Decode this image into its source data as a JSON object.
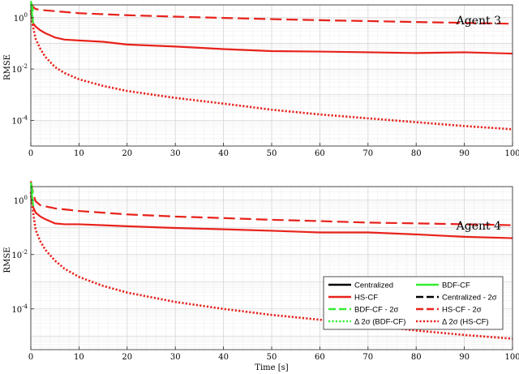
{
  "chart_data": [
    {
      "type": "line",
      "annotation": "Agent 3",
      "xlabel": "",
      "ylabel": "RMSE",
      "xlim": [
        0,
        100
      ],
      "ylim_log10": [
        -5,
        0.5
      ],
      "yscale": "log",
      "grid": true,
      "xticks": [
        "0",
        "10",
        "20",
        "30",
        "40",
        "50",
        "60",
        "70",
        "80",
        "90",
        "100"
      ],
      "yticks": [
        {
          "base": "10",
          "exp": "0"
        },
        {
          "base": "10",
          "exp": "-2"
        },
        {
          "base": "10",
          "exp": "-4"
        }
      ],
      "series": [
        {
          "name": "HS-CF",
          "color": "#e8221b",
          "style": "solid",
          "x": [
            0,
            0.5,
            1,
            2,
            3,
            5,
            7,
            10,
            15,
            20,
            30,
            40,
            50,
            60,
            70,
            80,
            90,
            100
          ],
          "y": [
            1.6,
            0.6,
            0.45,
            0.32,
            0.25,
            0.17,
            0.14,
            0.13,
            0.115,
            0.09,
            0.075,
            0.06,
            0.05,
            0.048,
            0.045,
            0.042,
            0.045,
            0.04
          ]
        },
        {
          "name": "HS-CF - 2σ",
          "color": "#e8221b",
          "style": "dashed",
          "x": [
            0,
            0.3,
            0.6,
            1,
            2,
            5,
            10,
            20,
            30,
            40,
            50,
            60,
            70,
            80,
            90,
            100
          ],
          "y": [
            4,
            3,
            2.5,
            2.2,
            2.0,
            1.8,
            1.5,
            1.25,
            1.1,
            0.98,
            0.88,
            0.8,
            0.74,
            0.68,
            0.63,
            0.58
          ]
        },
        {
          "name": "Δ 2σ (HS-CF)",
          "color": "#e8221b",
          "style": "dotted",
          "x": [
            0,
            0.3,
            1,
            2,
            3,
            5,
            7,
            10,
            15,
            20,
            30,
            40,
            50,
            60,
            70,
            80,
            90,
            100
          ],
          "y": [
            2,
            0.6,
            0.15,
            0.06,
            0.03,
            0.012,
            0.007,
            0.004,
            0.0022,
            0.0014,
            0.00075,
            0.00045,
            0.00026,
            0.00017,
            0.00012,
            8.5e-05,
            6e-05,
            4.5e-05
          ]
        },
        {
          "name": "BDF-CF",
          "color": "#33ee33",
          "style": "solid",
          "x": [
            0,
            0.25,
            0.5
          ],
          "y": [
            3.5,
            1.5,
            0.6
          ]
        },
        {
          "name": "BDF-CF - 2σ",
          "color": "#33ee33",
          "style": "dashed",
          "x": [
            0,
            0.25,
            0.5
          ],
          "y": [
            4.5,
            2.8,
            1.8
          ]
        }
      ]
    },
    {
      "type": "line",
      "annotation": "Agent 4",
      "xlabel": "Time [s]",
      "ylabel": "RMSE",
      "xlim": [
        0,
        100
      ],
      "ylim_log10": [
        -5.5,
        0.5
      ],
      "yscale": "log",
      "grid": true,
      "xticks": [
        "0",
        "10",
        "20",
        "30",
        "40",
        "50",
        "60",
        "70",
        "80",
        "90",
        "100"
      ],
      "yticks": [
        {
          "base": "10",
          "exp": "0"
        },
        {
          "base": "10",
          "exp": "-2"
        },
        {
          "base": "10",
          "exp": "-4"
        }
      ],
      "series": [
        {
          "name": "HS-CF",
          "color": "#e8221b",
          "style": "solid",
          "x": [
            0,
            0.5,
            1,
            2,
            3,
            5,
            7,
            10,
            15,
            20,
            30,
            40,
            50,
            60,
            70,
            80,
            90,
            100
          ],
          "y": [
            1.5,
            0.55,
            0.35,
            0.25,
            0.2,
            0.14,
            0.13,
            0.13,
            0.12,
            0.11,
            0.095,
            0.085,
            0.075,
            0.065,
            0.065,
            0.055,
            0.045,
            0.04
          ]
        },
        {
          "name": "HS-CF - 2σ",
          "color": "#e8221b",
          "style": "dashed",
          "x": [
            0,
            0.3,
            0.6,
            1,
            2,
            5,
            10,
            20,
            30,
            40,
            50,
            60,
            70,
            80,
            90,
            100
          ],
          "y": [
            5,
            2.5,
            1.5,
            0.9,
            0.65,
            0.5,
            0.4,
            0.3,
            0.25,
            0.22,
            0.19,
            0.17,
            0.15,
            0.14,
            0.13,
            0.12
          ]
        },
        {
          "name": "Δ 2σ (HS-CF)",
          "color": "#e8221b",
          "style": "dotted",
          "x": [
            0,
            0.3,
            1,
            2,
            3,
            5,
            7,
            10,
            15,
            20,
            30,
            40,
            50,
            60,
            70,
            80,
            90,
            100
          ],
          "y": [
            2,
            0.6,
            0.08,
            0.03,
            0.015,
            0.006,
            0.003,
            0.0015,
            0.0007,
            0.0004,
            0.00018,
            0.0001,
            6e-05,
            4e-05,
            2.5e-05,
            1.6e-05,
            1.1e-05,
            8e-06
          ]
        },
        {
          "name": "BDF-CF",
          "color": "#33ee33",
          "style": "solid",
          "x": [
            0,
            0.25,
            0.5
          ],
          "y": [
            3.5,
            1.5,
            0.6
          ]
        },
        {
          "name": "BDF-CF - 2σ",
          "color": "#33ee33",
          "style": "dashed",
          "x": [
            0,
            0.25,
            0.5
          ],
          "y": [
            4.5,
            2.5,
            1.5
          ]
        }
      ]
    }
  ],
  "legend": {
    "placement": "lower-right",
    "entries": [
      {
        "label": "Centralized",
        "color": "#000000",
        "style": "solid"
      },
      {
        "label": "BDF-CF",
        "color": "#33ee33",
        "style": "solid"
      },
      {
        "label": "HS-CF",
        "color": "#e8221b",
        "style": "solid"
      },
      {
        "label": "Centralized - 2σ",
        "color": "#000000",
        "style": "dashed"
      },
      {
        "label": "BDF-CF - 2σ",
        "color": "#33ee33",
        "style": "dashed"
      },
      {
        "label": "HS-CF - 2σ",
        "color": "#e8221b",
        "style": "dashed"
      },
      {
        "label": "Δ 2σ (BDF-CF)",
        "color": "#33ee33",
        "style": "dotted"
      },
      {
        "label": "Δ 2σ (HS-CF)",
        "color": "#e8221b",
        "style": "dotted"
      }
    ]
  }
}
